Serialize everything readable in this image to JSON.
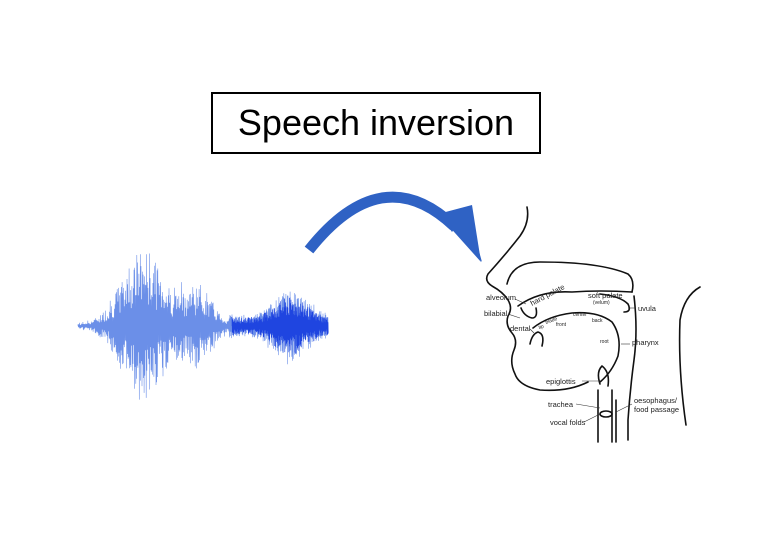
{
  "title": "Speech inversion",
  "colors": {
    "waveform_light": "#6b8fe8",
    "waveform_dark": "#1f45e0",
    "arrow": "#2f62c4",
    "outline": "#111111"
  },
  "icons": {
    "waveform": "speech-waveform-icon",
    "arrow": "curved-arrow-icon",
    "vocal_tract": "vocal-tract-diagram"
  },
  "anatomy_labels": {
    "alveolum": "alveolum",
    "hard_palate": "hard palate",
    "soft_palate": "soft palate",
    "velum": "(velum)",
    "uvula": "uvula",
    "bilabial": "bilabial",
    "dental": "dental",
    "tip": "tip",
    "blade": "blade",
    "center": "center",
    "front": "front",
    "back": "back",
    "root": "root",
    "pharynx": "pharynx",
    "epiglottis": "epiglottis",
    "trachea": "trachea",
    "oesophagus": "oesophagus/",
    "food_passage": "food passage",
    "vocal_folds": "vocal folds"
  }
}
